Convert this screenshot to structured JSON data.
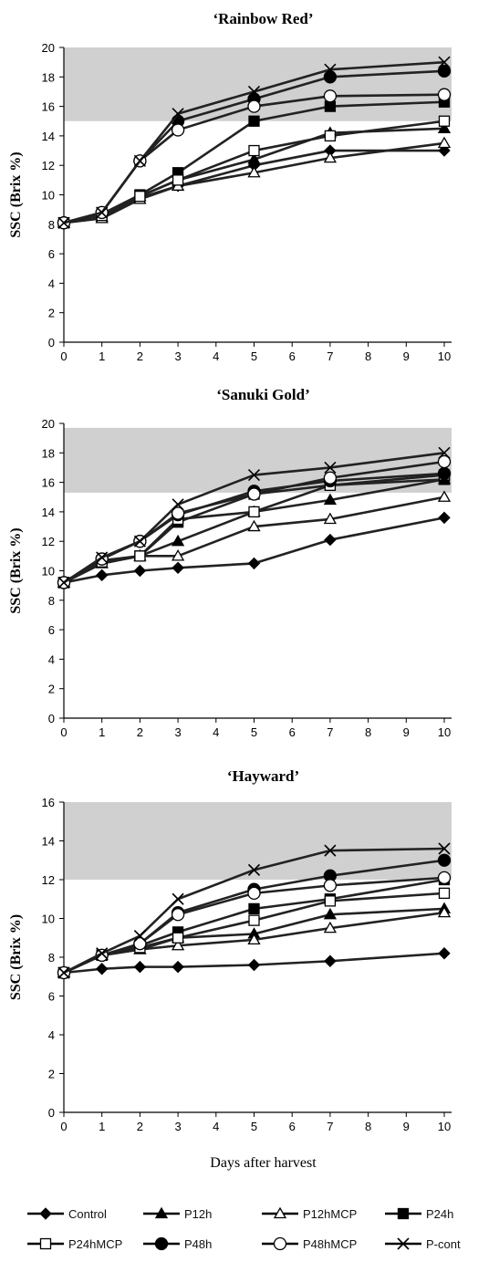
{
  "xlabel": "Days after harvest",
  "series_names": [
    "Control",
    "P12h",
    "P12hMCP",
    "P24h",
    "P24hMCP",
    "P48h",
    "P48hMCP",
    "P-cont"
  ],
  "markers": [
    "diamond",
    "triangle",
    "triangle-open",
    "square",
    "square-open",
    "circle",
    "circle-open",
    "x"
  ],
  "chart_data": [
    {
      "type": "line",
      "title": "‘Rainbow Red’",
      "ylabel": "SSC (Brix %)",
      "xlim": [
        0,
        10
      ],
      "ylim": [
        0,
        20
      ],
      "xticks": [
        0,
        1,
        2,
        3,
        4,
        5,
        6,
        7,
        8,
        9,
        10
      ],
      "yticks": [
        0,
        2,
        4,
        6,
        8,
        10,
        12,
        14,
        16,
        18,
        20
      ],
      "shaded_band": [
        15,
        20
      ],
      "x": [
        0,
        1,
        2,
        3,
        5,
        7,
        10
      ],
      "series": [
        {
          "name": "Control",
          "values": [
            8.1,
            8.6,
            9.8,
            10.6,
            12.0,
            13.0,
            13.0
          ]
        },
        {
          "name": "P12h",
          "values": [
            8.1,
            8.5,
            9.9,
            11.0,
            12.4,
            14.2,
            14.5
          ]
        },
        {
          "name": "P12hMCP",
          "values": [
            8.1,
            8.4,
            9.7,
            10.6,
            11.5,
            12.5,
            13.5
          ]
        },
        {
          "name": "P24h",
          "values": [
            8.1,
            8.7,
            10.0,
            11.5,
            15.0,
            16.0,
            16.3
          ]
        },
        {
          "name": "P24hMCP",
          "values": [
            8.1,
            8.6,
            9.9,
            11.0,
            13.0,
            14.0,
            15.0
          ]
        },
        {
          "name": "P48h",
          "values": [
            8.1,
            8.8,
            12.3,
            15.0,
            16.5,
            18.0,
            18.4
          ]
        },
        {
          "name": "P48hMCP",
          "values": [
            8.1,
            8.8,
            12.3,
            14.4,
            16.0,
            16.7,
            16.8
          ]
        },
        {
          "name": "P-cont",
          "values": [
            8.1,
            8.8,
            12.3,
            15.5,
            17.0,
            18.5,
            19.0
          ]
        }
      ]
    },
    {
      "type": "line",
      "title": "‘Sanuki Gold’",
      "ylabel": "SSC (Brix %)",
      "xlim": [
        0,
        10
      ],
      "ylim": [
        0,
        20
      ],
      "xticks": [
        0,
        1,
        2,
        3,
        4,
        5,
        6,
        7,
        8,
        9,
        10
      ],
      "yticks": [
        0,
        2,
        4,
        6,
        8,
        10,
        12,
        14,
        16,
        18,
        20
      ],
      "shaded_band": [
        15.3,
        19.7
      ],
      "x": [
        0,
        1,
        2,
        3,
        5,
        7,
        10
      ],
      "series": [
        {
          "name": "Control",
          "values": [
            9.2,
            9.7,
            10.0,
            10.2,
            10.5,
            12.1,
            13.6
          ]
        },
        {
          "name": "P12h",
          "values": [
            9.2,
            10.5,
            11.0,
            12.0,
            14.0,
            14.8,
            16.2
          ]
        },
        {
          "name": "P12hMCP",
          "values": [
            9.2,
            10.5,
            11.0,
            11.0,
            13.0,
            13.5,
            15.0
          ]
        },
        {
          "name": "P24h",
          "values": [
            9.2,
            10.7,
            11.0,
            13.3,
            15.2,
            15.8,
            16.2
          ]
        },
        {
          "name": "P24hMCP",
          "values": [
            9.2,
            10.6,
            11.0,
            13.5,
            14.0,
            15.8,
            16.5
          ]
        },
        {
          "name": "P48h",
          "values": [
            9.2,
            10.8,
            12.0,
            13.8,
            15.4,
            16.1,
            16.6
          ]
        },
        {
          "name": "P48hMCP",
          "values": [
            9.2,
            10.8,
            12.0,
            13.9,
            15.2,
            16.3,
            17.4
          ]
        },
        {
          "name": "P-cont",
          "values": [
            9.2,
            10.9,
            12.0,
            14.5,
            16.5,
            17.0,
            18.0
          ]
        }
      ]
    },
    {
      "type": "line",
      "title": "‘Hayward’",
      "ylabel": "SSC (Brix %)",
      "xlabel": "Days after harvest",
      "xlim": [
        0,
        10
      ],
      "ylim": [
        0,
        16
      ],
      "xticks": [
        0,
        1,
        2,
        3,
        4,
        5,
        6,
        7,
        8,
        9,
        10
      ],
      "yticks": [
        0,
        2,
        4,
        6,
        8,
        10,
        12,
        14,
        16
      ],
      "shaded_band": [
        12,
        16
      ],
      "x": [
        0,
        1,
        2,
        3,
        5,
        7,
        10
      ],
      "series": [
        {
          "name": "Control",
          "values": [
            7.2,
            7.4,
            7.5,
            7.5,
            7.6,
            7.8,
            8.2
          ]
        },
        {
          "name": "P12h",
          "values": [
            7.2,
            8.1,
            8.4,
            9.0,
            9.2,
            10.2,
            10.5
          ]
        },
        {
          "name": "P12hMCP",
          "values": [
            7.2,
            8.1,
            8.4,
            8.6,
            8.9,
            9.5,
            10.3
          ]
        },
        {
          "name": "P24h",
          "values": [
            7.2,
            8.1,
            8.6,
            9.3,
            10.5,
            11.0,
            12.0
          ]
        },
        {
          "name": "P24hMCP",
          "values": [
            7.2,
            8.1,
            8.5,
            9.0,
            9.9,
            10.9,
            11.3
          ]
        },
        {
          "name": "P48h",
          "values": [
            7.2,
            8.1,
            8.7,
            10.3,
            11.5,
            12.2,
            13.0
          ]
        },
        {
          "name": "P48hMCP",
          "values": [
            7.2,
            8.1,
            8.7,
            10.2,
            11.3,
            11.7,
            12.1
          ]
        },
        {
          "name": "P-cont",
          "values": [
            7.2,
            8.2,
            9.1,
            11.0,
            12.5,
            13.5,
            13.6
          ]
        }
      ]
    }
  ]
}
